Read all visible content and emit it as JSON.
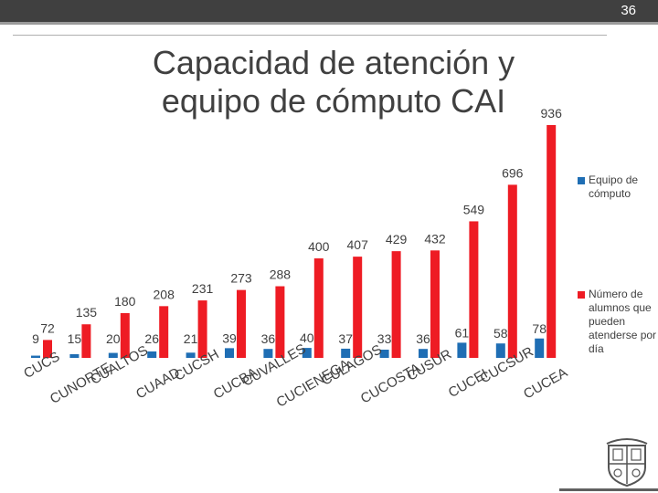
{
  "slide": {
    "page_number": "36",
    "title": "Capacidad de atención y equipo de cómputo CAI"
  },
  "colors": {
    "equipo": "#1f6eb4",
    "alumnos": "#ee1c24",
    "text": "#404040"
  },
  "chart_data": {
    "type": "bar",
    "title": "Capacidad de atención y equipo de cómputo CAI",
    "xlabel": "",
    "ylabel": "",
    "ylim": [
      0,
      1000
    ],
    "categories": [
      "CUCS",
      "CUNORTE",
      "CUALTOS",
      "CUAAD",
      "CUCSH",
      "CUCBA",
      "CUVALLES",
      "CUCIENEGA",
      "CULAGOS",
      "CUCOSTA",
      "CUSUR",
      "CUCEI",
      "CUCSUR",
      "CUCEA"
    ],
    "series": [
      {
        "name": "Equipo de cómputo",
        "values": [
          9,
          15,
          20,
          26,
          21,
          39,
          36,
          40,
          37,
          33,
          36,
          61,
          58,
          78
        ],
        "labels": [
          "9",
          "15",
          "20",
          "26",
          "21",
          "39",
          "36",
          "40",
          "37",
          "33",
          "36",
          "61",
          "58",
          "78"
        ]
      },
      {
        "name": "Número de alumnos que pueden atenderse por día",
        "values": [
          72,
          135,
          180,
          208,
          231,
          273,
          288,
          400,
          407,
          429,
          432,
          549,
          696,
          936
        ],
        "labels": [
          "72",
          "135",
          "180",
          "208",
          "231",
          "273",
          "288",
          "400",
          "407",
          "429",
          "432",
          "549",
          "696",
          "936"
        ]
      }
    ],
    "legend": "right"
  }
}
